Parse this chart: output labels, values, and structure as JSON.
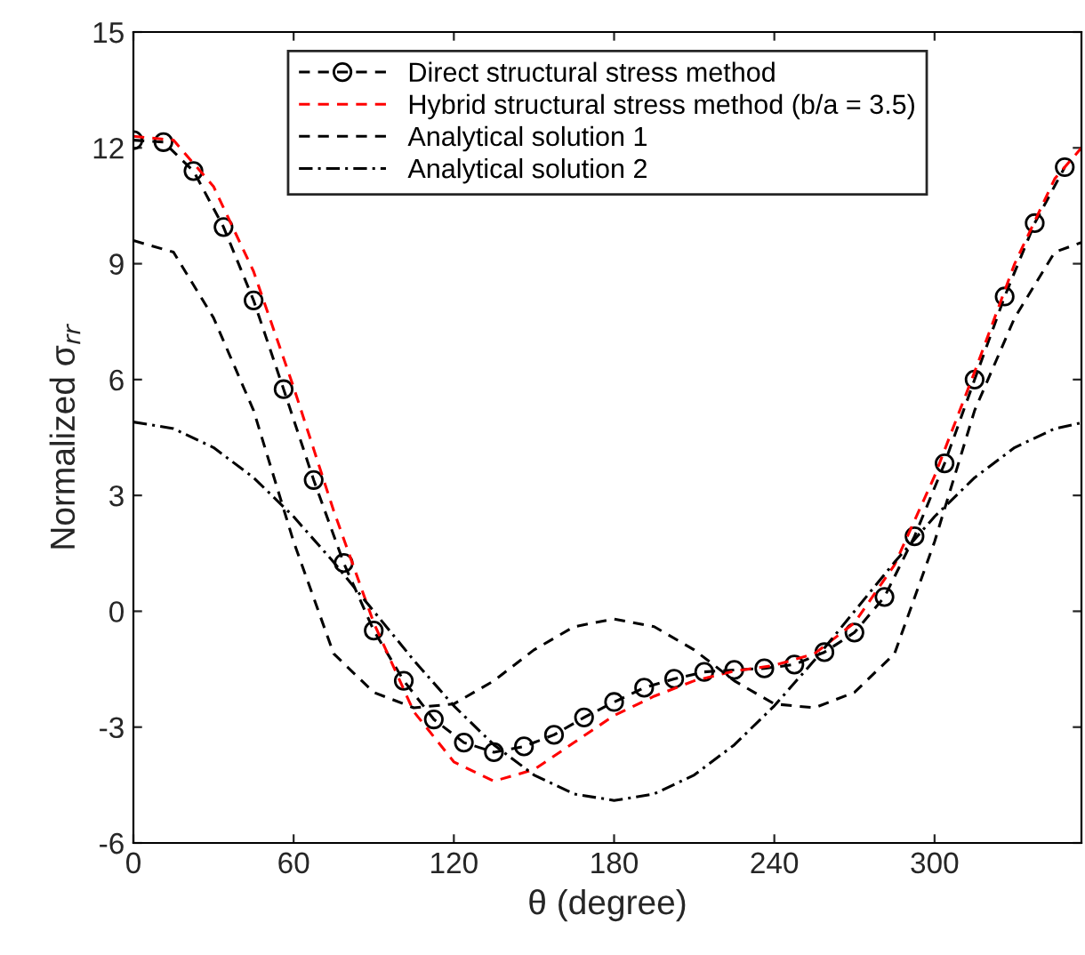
{
  "chart_data": {
    "type": "line",
    "xlabel": "θ (degree)",
    "ylabel": "Normalized σ$_{rr}$",
    "xlim": [
      0,
      355
    ],
    "xticks": [
      0,
      60,
      120,
      180,
      240,
      300
    ],
    "ylim": [
      -6,
      15
    ],
    "yticks": [
      -6,
      -3,
      0,
      3,
      6,
      9,
      12,
      15
    ],
    "grid": false,
    "legend": "top",
    "series": [
      {
        "name": "Direct structural stress method",
        "color": "#000000",
        "line_style": "dashed",
        "marker": "circle",
        "x": [
          0,
          11.25,
          22.5,
          33.75,
          45,
          56.25,
          67.5,
          78.75,
          90,
          101.25,
          112.5,
          123.75,
          135,
          146.25,
          157.5,
          168.75,
          180,
          191.25,
          202.5,
          213.75,
          225,
          236.25,
          247.5,
          258.75,
          270,
          281.25,
          292.5,
          303.75,
          315,
          326.25,
          337.5,
          348.75
        ],
        "values": [
          12.2,
          12.15,
          11.4,
          9.95,
          8.05,
          5.75,
          3.4,
          1.25,
          -0.5,
          -1.8,
          -2.8,
          -3.4,
          -3.65,
          -3.5,
          -3.2,
          -2.75,
          -2.35,
          -1.98,
          -1.75,
          -1.57,
          -1.52,
          -1.48,
          -1.38,
          -1.06,
          -0.55,
          0.37,
          1.94,
          3.83,
          6.0,
          8.15,
          10.05,
          11.5
        ]
      },
      {
        "name": "Hybrid structural stress method (b/a = 3.5)",
        "color": "#ff0000",
        "line_style": "dashed",
        "x": [
          0,
          15,
          30,
          45,
          60,
          75,
          90,
          105,
          120,
          135,
          150,
          165,
          180,
          195,
          210,
          225,
          240,
          255,
          270,
          285,
          300,
          315,
          330,
          345,
          355
        ],
        "values": [
          12.3,
          12.2,
          11.0,
          8.8,
          5.8,
          2.6,
          -0.3,
          -2.6,
          -3.9,
          -4.4,
          -4.1,
          -3.4,
          -2.7,
          -2.2,
          -1.8,
          -1.55,
          -1.4,
          -1.1,
          -0.3,
          1.2,
          3.5,
          6.2,
          9.0,
          11.2,
          12.0
        ]
      },
      {
        "name": "Analytical solution 1",
        "color": "#000000",
        "line_style": "dashed",
        "x": [
          0,
          15,
          30,
          45,
          60,
          75,
          90,
          105,
          120,
          135,
          150,
          165,
          180,
          195,
          210,
          225,
          240,
          255,
          270,
          285,
          300,
          315,
          330,
          345,
          355
        ],
        "values": [
          9.6,
          9.3,
          7.6,
          5.2,
          1.8,
          -1.1,
          -2.1,
          -2.5,
          -2.4,
          -1.8,
          -1.0,
          -0.4,
          -0.2,
          -0.4,
          -1.0,
          -1.8,
          -2.4,
          -2.5,
          -2.1,
          -1.1,
          1.8,
          5.2,
          7.6,
          9.3,
          9.55
        ]
      },
      {
        "name": "Analytical solution 2",
        "color": "#000000",
        "line_style": "dashdot",
        "x": [
          0,
          15,
          30,
          45,
          60,
          75,
          90,
          105,
          120,
          135,
          150,
          165,
          180,
          195,
          210,
          225,
          240,
          255,
          270,
          285,
          300,
          315,
          330,
          345,
          355
        ],
        "values": [
          4.9,
          4.73,
          4.24,
          3.46,
          2.45,
          1.27,
          0,
          -1.27,
          -2.45,
          -3.46,
          -4.24,
          -4.73,
          -4.9,
          -4.73,
          -4.24,
          -3.46,
          -2.45,
          -1.27,
          0,
          1.27,
          2.45,
          3.46,
          4.24,
          4.73,
          4.88
        ]
      }
    ]
  }
}
